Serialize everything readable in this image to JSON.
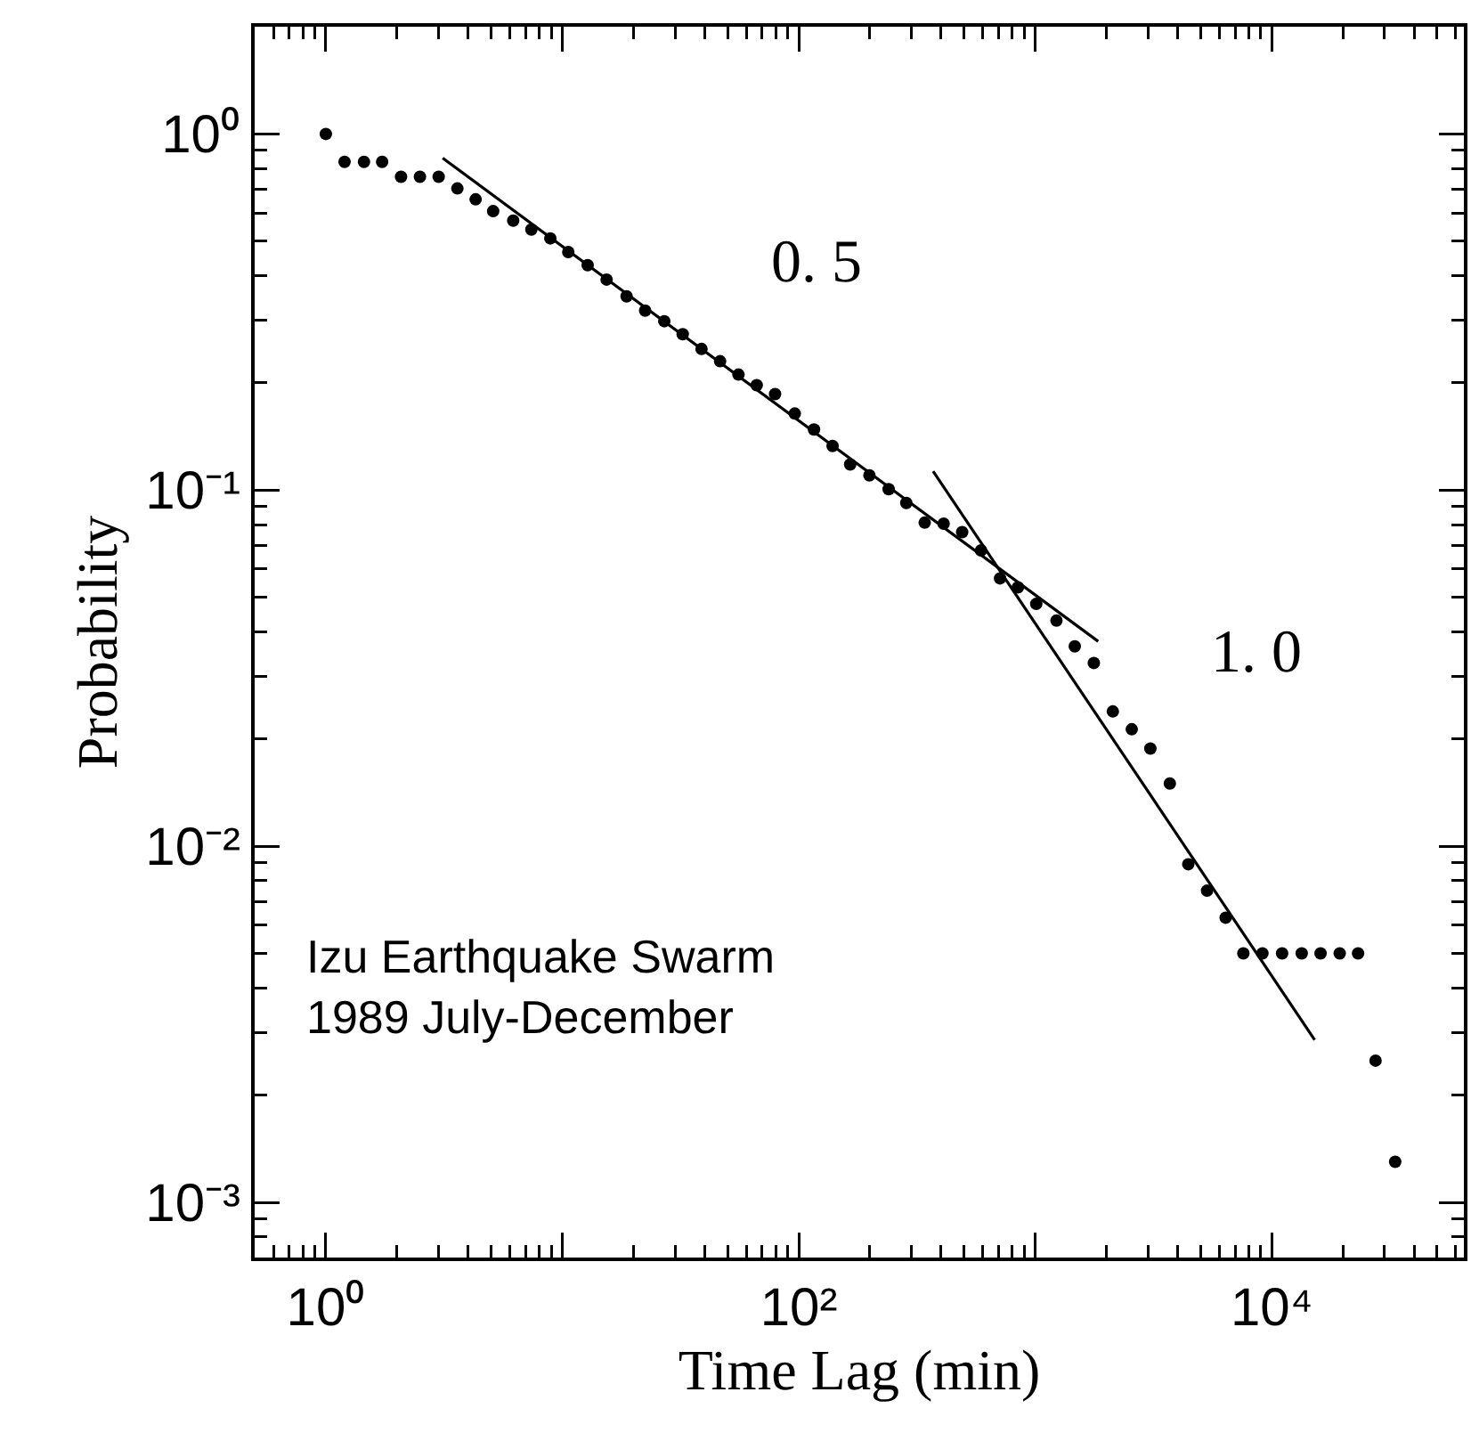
{
  "chart_data": {
    "type": "scatter",
    "xlabel": "Time Lag (min)",
    "ylabel": "Probability",
    "log": "xy",
    "grid": false,
    "xlim": [
      0.5,
      65000
    ],
    "ylim": [
      0.0007,
      2
    ],
    "xticks": [
      {
        "value": 1,
        "label": "10⁰"
      },
      {
        "value": 10,
        "label": null
      },
      {
        "value": 100,
        "label": "10²"
      },
      {
        "value": 1000,
        "label": null
      },
      {
        "value": 10000,
        "label": "10⁴"
      }
    ],
    "yticks": [
      {
        "value": 1,
        "label": "10⁰"
      },
      {
        "value": 0.1,
        "label": "10⁻¹"
      },
      {
        "value": 0.01,
        "label": "10⁻²"
      },
      {
        "value": 0.001,
        "label": "10⁻³"
      }
    ],
    "series": [
      {
        "color": "#000000",
        "marker": "circle",
        "x": [
          1,
          1.2,
          1.45,
          1.73,
          2.08,
          2.5,
          3,
          3.6,
          4.3,
          5.1,
          6.2,
          7.4,
          8.9,
          10.6,
          12.8,
          15.4,
          18.7,
          22.4,
          27,
          32.3,
          38.8,
          46.5,
          55.6,
          66.4,
          79.4,
          96.2,
          116,
          139,
          165,
          199,
          240,
          285,
          341,
          410,
          491,
          590,
          710,
          845,
          1010,
          1230,
          1470,
          1770,
          2130,
          2560,
          3070,
          3710,
          4440,
          5330,
          6390,
          7590,
          9140,
          11070,
          13400,
          16100,
          19400,
          23200,
          27500,
          33300
        ],
        "values": [
          1,
          0.835,
          0.835,
          0.835,
          0.758,
          0.758,
          0.758,
          0.703,
          0.655,
          0.607,
          0.571,
          0.539,
          0.509,
          0.466,
          0.428,
          0.39,
          0.35,
          0.319,
          0.298,
          0.274,
          0.249,
          0.23,
          0.211,
          0.197,
          0.186,
          0.164,
          0.148,
          0.133,
          0.118,
          0.11,
          0.1006,
          0.092,
          0.081,
          0.0805,
          0.0762,
          0.0677,
          0.0565,
          0.0533,
          0.0479,
          0.043,
          0.0364,
          0.0327,
          0.0239,
          0.0213,
          0.0188,
          0.015,
          0.0089,
          0.0075,
          0.0063,
          0.005,
          0.005,
          0.005,
          0.005,
          0.005,
          0.005,
          0.005,
          0.0025,
          0.0013
        ]
      },
      {
        "type": "line",
        "color": "#000000",
        "x": [
          3.12,
          1846
        ],
        "values": [
          0.855,
          0.0376
        ]
      },
      {
        "type": "line",
        "color": "#000000",
        "x": [
          370,
          15200
        ],
        "values": [
          0.113,
          0.00286
        ]
      }
    ],
    "annotations": [
      "0. 5",
      "1. 0",
      "Izu Earthquake Swarm\n1989 July-December"
    ]
  }
}
